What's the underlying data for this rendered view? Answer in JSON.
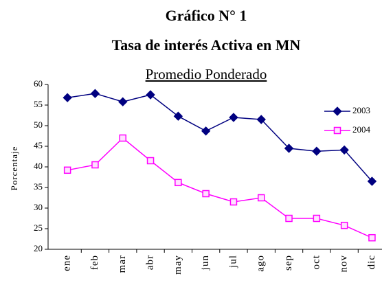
{
  "chart_data": {
    "type": "line",
    "title": "Gráfico N° 1",
    "subtitle": "Tasa de interés Activa en MN",
    "subtitle2": "Promedio Ponderado",
    "y_label": "Porcentaje",
    "categories": [
      "ene",
      "feb",
      "mar",
      "abr",
      "may",
      "jun",
      "jul",
      "ago",
      "sep",
      "oct",
      "nov",
      "dic"
    ],
    "series": [
      {
        "name": "2003",
        "color": "#000080",
        "marker": "diamond",
        "values": [
          56.8,
          57.8,
          55.8,
          57.5,
          52.3,
          48.7,
          52,
          51.5,
          44.5,
          43.8,
          44.1,
          36.5
        ]
      },
      {
        "name": "2004",
        "color": "#ff00ff",
        "marker": "square",
        "values": [
          39.2,
          40.5,
          47,
          41.5,
          36.2,
          33.5,
          31.5,
          32.5,
          27.5,
          27.5,
          25.8,
          22.8
        ]
      }
    ],
    "ylim": [
      20,
      60
    ],
    "yticks": [
      20,
      25,
      30,
      35,
      40,
      45,
      50,
      55,
      60
    ],
    "grid": false,
    "legend": "right"
  }
}
